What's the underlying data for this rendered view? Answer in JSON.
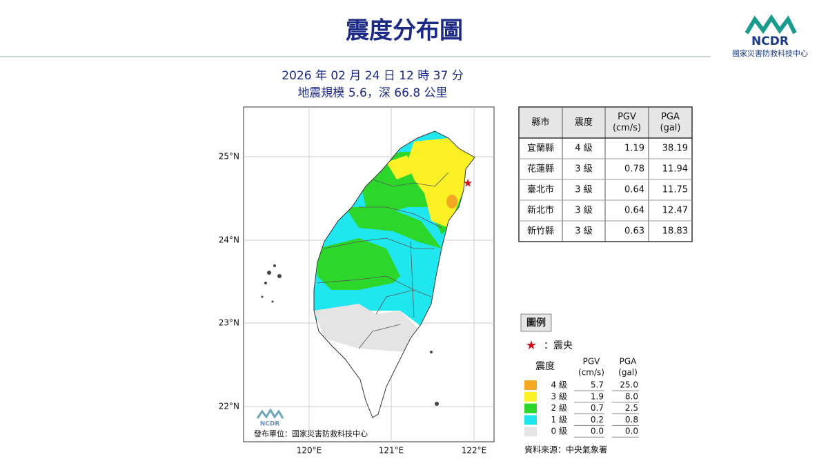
{
  "header": {
    "title": "震度分布圖",
    "logo": "NCDR",
    "organization": "國家災害防救科技中心"
  },
  "subtitle": [
    "2026 年 02 月 24 日 12 時 37 分",
    "地震規模 5.6，深 66.8 公里"
  ],
  "map": {
    "lat_labels": [
      "25°N",
      "24°N",
      "23°N",
      "22°N"
    ],
    "lon_labels": [
      "120°E",
      "121°E",
      "122°E"
    ],
    "logo": "NCDR",
    "publisher": "發布單位：國家災害防救科技中心"
  },
  "table": {
    "headers": [
      [
        "縣市"
      ],
      [
        "震度"
      ],
      [
        "PGV",
        "(cm/s)"
      ],
      [
        "PGA",
        "(gal)"
      ]
    ],
    "rows": [
      [
        "宜蘭縣",
        "4 級",
        "1.19",
        "38.19"
      ],
      [
        "花蓮縣",
        "3 級",
        "0.78",
        "11.94"
      ],
      [
        "臺北市",
        "3 級",
        "0.64",
        "11.75"
      ],
      [
        "新北市",
        "3 級",
        "0.64",
        "12.47"
      ],
      [
        "新竹縣",
        "3 級",
        "0.63",
        "18.83"
      ]
    ]
  },
  "legend": {
    "title": "圖例",
    "epicenter": "：震央",
    "headers": [
      [
        "震度"
      ],
      [
        "PGV",
        "(cm/s)"
      ],
      [
        "PGA",
        "(gal)"
      ]
    ],
    "rows": [
      [
        "4 級",
        "5.7",
        "25.0"
      ],
      [
        "3 級",
        "1.9",
        "8.0"
      ],
      [
        "2 級",
        "0.7",
        "2.5"
      ],
      [
        "1 級",
        "0.2",
        "0.8"
      ],
      [
        "0 級",
        "0.0",
        "0.0"
      ]
    ],
    "colors": [
      "#f7a823",
      "#fbf124",
      "#2dd62a",
      "#20e6f0",
      "#e4e4e4"
    ],
    "source": "資料來源：中央氣象署"
  }
}
